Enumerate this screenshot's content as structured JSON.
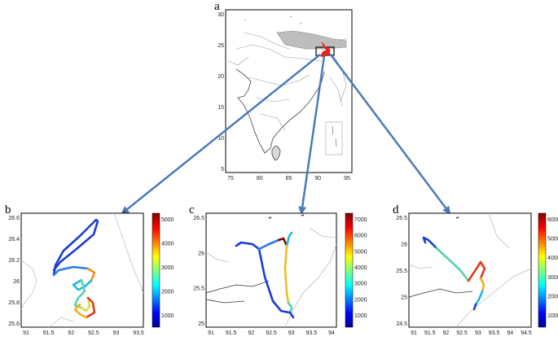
{
  "panels": {
    "a": {
      "label": "a",
      "yticks": [
        "30",
        "25",
        "20",
        "15",
        "10",
        "5"
      ],
      "xticks": [
        "75",
        "80",
        "85",
        "90",
        "95"
      ]
    },
    "b": {
      "label": "b",
      "yticks": [
        "26.6",
        "26.4",
        "26.2",
        "26",
        "25.8",
        "25.6"
      ],
      "xticks": [
        "91",
        "91.5",
        "92",
        "92.5",
        "93",
        "93.5"
      ],
      "cbar_ticks": [
        "5000",
        "4000",
        "3000",
        "2000",
        "1000"
      ]
    },
    "c": {
      "label": "c",
      "yticks": [
        "26.5",
        "26",
        "25.5",
        "25"
      ],
      "xticks": [
        "91",
        "91.5",
        "92",
        "92.5",
        "93",
        "93.5",
        "94"
      ],
      "cbar_ticks": [
        "7000",
        "6000",
        "5000",
        "4000",
        "3000",
        "2000",
        "1000"
      ]
    },
    "d": {
      "label": "d",
      "yticks": [
        "26.5",
        "26",
        "25.5",
        "25",
        "24.5"
      ],
      "xticks": [
        "91",
        "91.5",
        "92",
        "92.5",
        "93",
        "93.5",
        "94",
        "94.5"
      ],
      "cbar_ticks": [
        "6000",
        "5000",
        "4000",
        "3000",
        "2000",
        "1000"
      ]
    }
  },
  "colors": {
    "arrow": "#4a7ab8",
    "highlight_box": "#000000",
    "track_marker": "#e8201a"
  }
}
